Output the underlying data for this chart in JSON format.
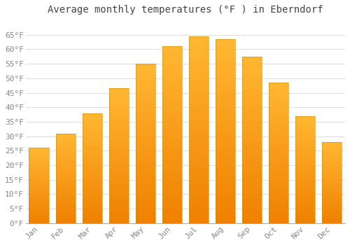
{
  "title": "Average monthly temperatures (°F ) in Eberndorf",
  "months": [
    "Jan",
    "Feb",
    "Mar",
    "Apr",
    "May",
    "Jun",
    "Jul",
    "Aug",
    "Sep",
    "Oct",
    "Nov",
    "Dec"
  ],
  "values": [
    26,
    31,
    38,
    46.5,
    55,
    61,
    64.5,
    63.5,
    57.5,
    48.5,
    37,
    28
  ],
  "bar_color_top": "#FFB732",
  "bar_color_bottom": "#F08000",
  "bar_edge_color": "#C8890A",
  "background_color": "#ffffff",
  "grid_color": "#dddddd",
  "ylim": [
    0,
    70
  ],
  "yticks": [
    0,
    5,
    10,
    15,
    20,
    25,
    30,
    35,
    40,
    45,
    50,
    55,
    60,
    65
  ],
  "title_fontsize": 10,
  "tick_fontsize": 8,
  "title_color": "#444444",
  "tick_color": "#888888",
  "bar_width": 0.75
}
